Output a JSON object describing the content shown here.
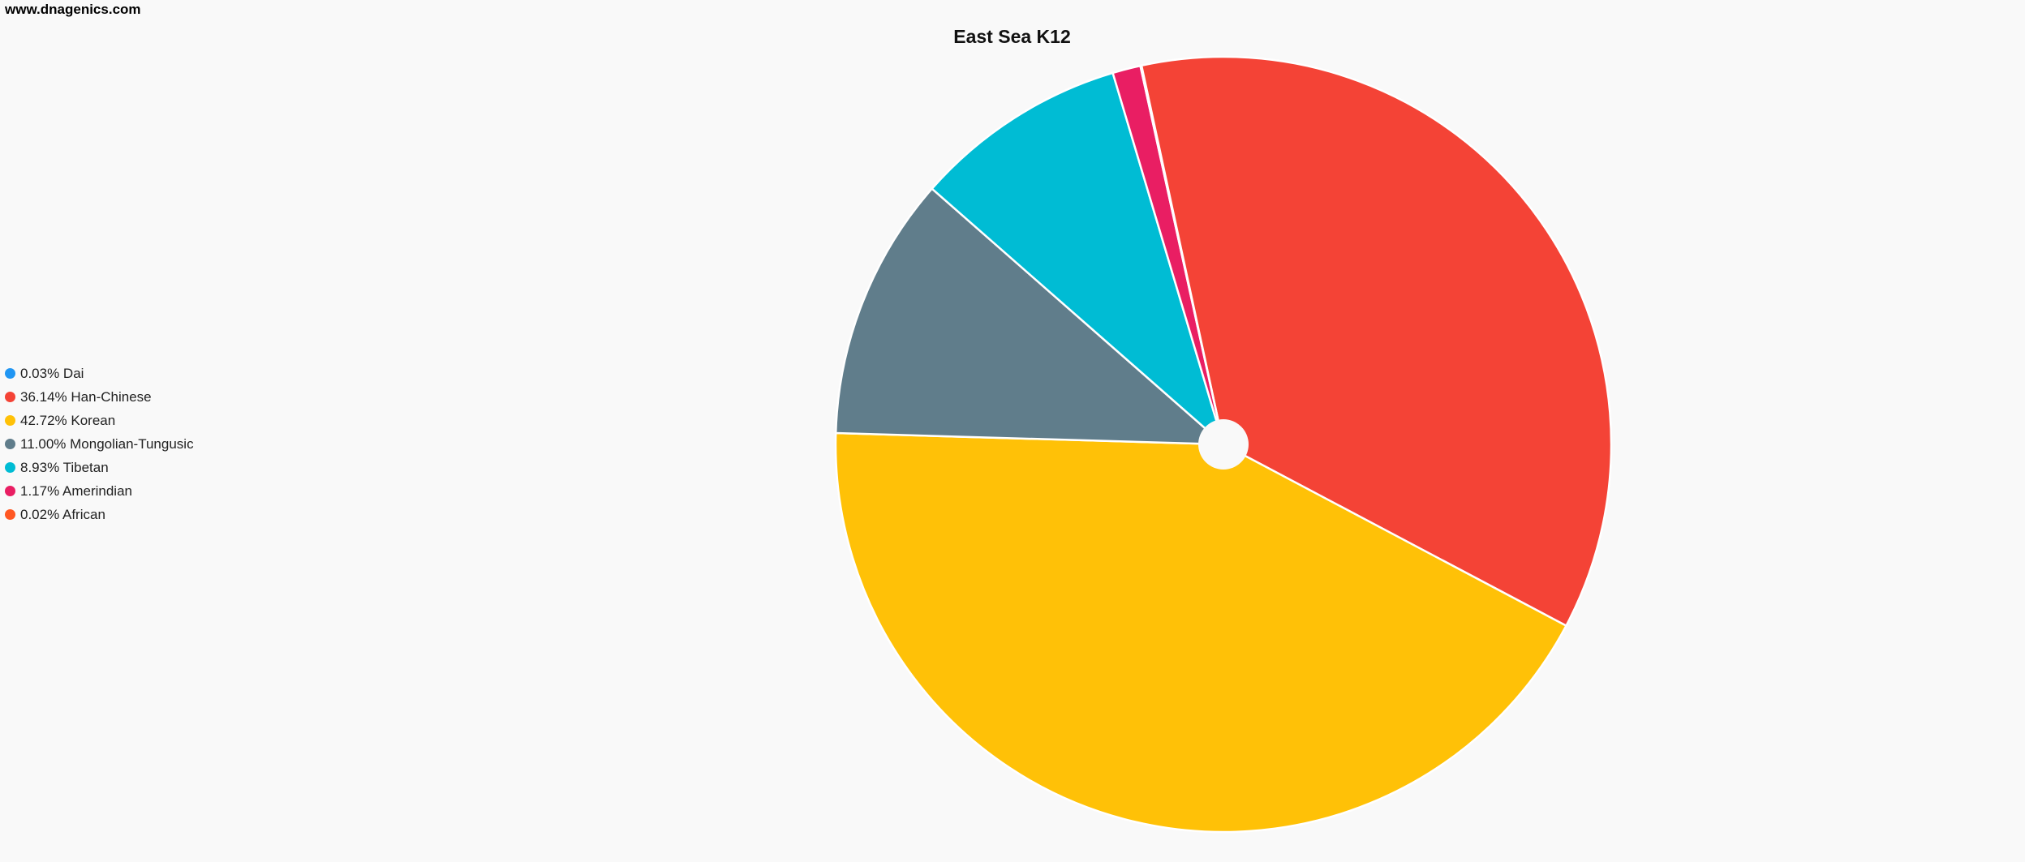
{
  "site_label": "www.dnagenics.com",
  "chart_data": {
    "type": "pie",
    "title": "East Sea K12",
    "legend_position": "left",
    "slices": [
      {
        "label": "Dai",
        "value": 0.03,
        "legend": "0.03% Dai",
        "color": "#2196f3"
      },
      {
        "label": "Han-Chinese",
        "value": 36.14,
        "legend": "36.14% Han-Chinese",
        "color": "#f44336"
      },
      {
        "label": "Korean",
        "value": 42.72,
        "legend": "42.72% Korean",
        "color": "#ffc107"
      },
      {
        "label": "Mongolian-Tungusic",
        "value": 11.0,
        "legend": "11.00% Mongolian-Tungusic",
        "color": "#607d8b"
      },
      {
        "label": "Tibetan",
        "value": 8.93,
        "legend": "8.93% Tibetan",
        "color": "#00bcd4"
      },
      {
        "label": "Amerindian",
        "value": 1.17,
        "legend": "1.17% Amerindian",
        "color": "#e91e63"
      },
      {
        "label": "African",
        "value": 0.02,
        "legend": "0.02% African",
        "color": "#ff5722"
      }
    ]
  }
}
